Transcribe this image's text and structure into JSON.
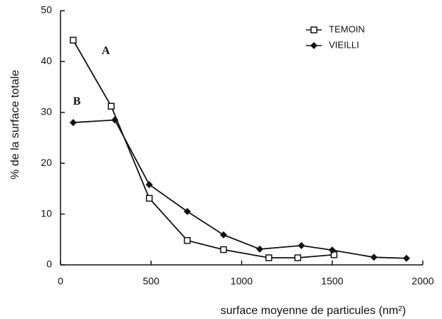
{
  "chart_data": {
    "type": "line",
    "xlabel": "surface moyenne de particules (nm²)",
    "ylabel": "% de la surface totale",
    "annotations": [
      {
        "text": "A",
        "x": 250,
        "y": 42
      },
      {
        "text": "B",
        "x": 90,
        "y": 32
      }
    ],
    "xlim": [
      0,
      2000
    ],
    "xticks": [
      0,
      500,
      1000,
      1500,
      2000
    ],
    "ylim": [
      0,
      50
    ],
    "yticks": [
      0,
      10,
      20,
      30,
      40,
      50
    ],
    "legend": "upper right",
    "series": [
      {
        "name": "TEMOIN",
        "color": "#111111",
        "marker": "square",
        "x": [
          70,
          280,
          490,
          700,
          900,
          1150,
          1310,
          1510
        ],
        "values": [
          44.2,
          31.2,
          13.1,
          4.8,
          3,
          1.4,
          1.4,
          2
        ]
      },
      {
        "name": "VIEILLI",
        "color": "#111111",
        "marker": "diamond",
        "x": [
          70,
          300,
          490,
          700,
          900,
          1100,
          1330,
          1500,
          1730,
          1910
        ],
        "values": [
          28,
          28.5,
          15.8,
          10.5,
          5.9,
          3.1,
          3.8,
          2.9,
          1.5,
          1.3
        ]
      }
    ]
  }
}
